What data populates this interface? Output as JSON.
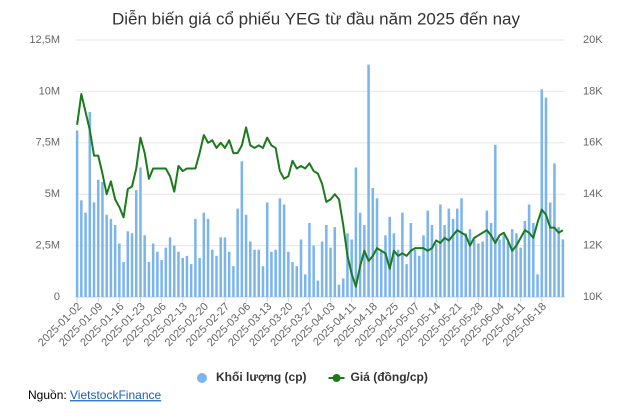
{
  "chart_data": {
    "type": "combo",
    "title": "Diễn biến giá cổ phiếu YEG từ đầu năm 2025 đến nay",
    "categories": [
      "2025-01-02",
      null,
      null,
      null,
      null,
      "2025-01-09",
      null,
      null,
      null,
      null,
      "2025-01-16",
      null,
      null,
      null,
      null,
      "2025-01-23",
      null,
      null,
      null,
      null,
      "2025-02-06",
      null,
      null,
      null,
      null,
      "2025-02-13",
      null,
      null,
      null,
      null,
      "2025-02-20",
      null,
      null,
      null,
      null,
      "2025-02-27",
      null,
      null,
      null,
      null,
      "2025-03-06",
      null,
      null,
      null,
      null,
      "2025-03-13",
      null,
      null,
      null,
      null,
      "2025-03-20",
      null,
      null,
      null,
      null,
      "2025-03-27",
      null,
      null,
      null,
      null,
      "2025-04-03",
      null,
      null,
      null,
      null,
      "2025-04-11",
      null,
      null,
      null,
      null,
      "2025-04-18",
      null,
      null,
      null,
      null,
      "2025-04-25",
      null,
      null,
      null,
      null,
      "2025-05-07",
      null,
      null,
      null,
      null,
      "2025-05-14",
      null,
      null,
      null,
      null,
      "2025-05-21",
      null,
      null,
      null,
      null,
      "2025-05-28",
      null,
      null,
      null,
      null,
      "2025-06-04",
      null,
      null,
      null,
      null,
      "2025-06-11",
      null,
      null,
      null,
      null,
      "2025-06-18",
      null,
      null,
      null,
      null,
      null
    ],
    "series": [
      {
        "name": "Khối lượng (cp)",
        "type": "bar",
        "color": "#7cb5ec",
        "values": [
          8100000,
          4700000,
          4100000,
          9000000,
          4600000,
          5700000,
          5600000,
          4000000,
          3800000,
          3500000,
          2600000,
          1700000,
          3200000,
          3100000,
          5200000,
          6300000,
          3000000,
          1700000,
          2600000,
          2200000,
          1800000,
          2400000,
          2900000,
          2500000,
          2200000,
          1900000,
          2000000,
          1600000,
          3800000,
          1900000,
          4100000,
          3800000,
          2300000,
          2000000,
          2900000,
          2900000,
          2200000,
          1500000,
          4300000,
          6600000,
          4000000,
          2700000,
          2300000,
          2300000,
          1500000,
          4600000,
          2200000,
          2300000,
          4800000,
          4500000,
          2200000,
          1700000,
          1500000,
          2800000,
          1100000,
          3600000,
          2500000,
          800000,
          2700000,
          3500000,
          2400000,
          3400000,
          600000,
          900000,
          3100000,
          2800000,
          6300000,
          4100000,
          3500000,
          11300000,
          5300000,
          4800000,
          2200000,
          3000000,
          3900000,
          3100000,
          2300000,
          4100000,
          1600000,
          3600000,
          2300000,
          2000000,
          3000000,
          4200000,
          3500000,
          2600000,
          4500000,
          3500000,
          4300000,
          3800000,
          4300000,
          4800000,
          3100000,
          3300000,
          2800000,
          2600000,
          2700000,
          4200000,
          3600000,
          7400000,
          2800000,
          3000000,
          2700000,
          3300000,
          3100000,
          2400000,
          3700000,
          4500000,
          3600000,
          1100000,
          10100000,
          9700000,
          4600000,
          6500000,
          3400000,
          2800000
        ]
      },
      {
        "name": "Giá (đồng/cp)",
        "type": "line",
        "axis": "y2",
        "color": "#1b7a1b",
        "values": [
          16700,
          17900,
          17200,
          16500,
          15500,
          15500,
          14800,
          14000,
          14500,
          13800,
          13500,
          13100,
          14200,
          14300,
          15000,
          16200,
          15600,
          14600,
          15000,
          15000,
          15000,
          15000,
          14700,
          14100,
          15100,
          14900,
          15000,
          15000,
          15000,
          15600,
          16300,
          16000,
          16100,
          15800,
          16000,
          15800,
          16100,
          15600,
          15600,
          15900,
          16600,
          15900,
          15800,
          15900,
          15800,
          16200,
          15900,
          15800,
          14900,
          14600,
          14700,
          15300,
          15000,
          15100,
          15000,
          15200,
          14900,
          14800,
          14400,
          13700,
          13800,
          14000,
          13800,
          12800,
          11600,
          10900,
          10400,
          11200,
          11800,
          11400,
          11600,
          11900,
          11800,
          11700,
          11100,
          11800,
          11600,
          11700,
          11600,
          11800,
          11900,
          11900,
          11900,
          11800,
          11900,
          12200,
          12100,
          12300,
          12200,
          12400,
          12600,
          12500,
          12400,
          12000,
          12300,
          12400,
          12500,
          12600,
          12400,
          12100,
          12400,
          12500,
          12200,
          11800,
          12000,
          12300,
          12600,
          12500,
          12300,
          12900,
          13400,
          13200,
          12700,
          12700,
          12500,
          12600
        ]
      }
    ],
    "ylim": [
      0,
      12500000
    ],
    "yticks": [
      {
        "value": 0,
        "label": "0"
      },
      {
        "value": 2500000,
        "label": "2,5M"
      },
      {
        "value": 5000000,
        "label": "5M"
      },
      {
        "value": 7500000,
        "label": "7,5M"
      },
      {
        "value": 10000000,
        "label": "10M"
      },
      {
        "value": 12500000,
        "label": "12,5M"
      }
    ],
    "y2lim": [
      10000,
      20000
    ],
    "y2ticks": [
      {
        "value": 10000,
        "label": "10K"
      },
      {
        "value": 12000,
        "label": "12K"
      },
      {
        "value": 14000,
        "label": "14K"
      },
      {
        "value": 16000,
        "label": "16K"
      },
      {
        "value": 18000,
        "label": "18K"
      },
      {
        "value": 20000,
        "label": "20K"
      }
    ],
    "grid": true,
    "source_label": "Nguồn:",
    "source_link": "VietstockFinance"
  }
}
